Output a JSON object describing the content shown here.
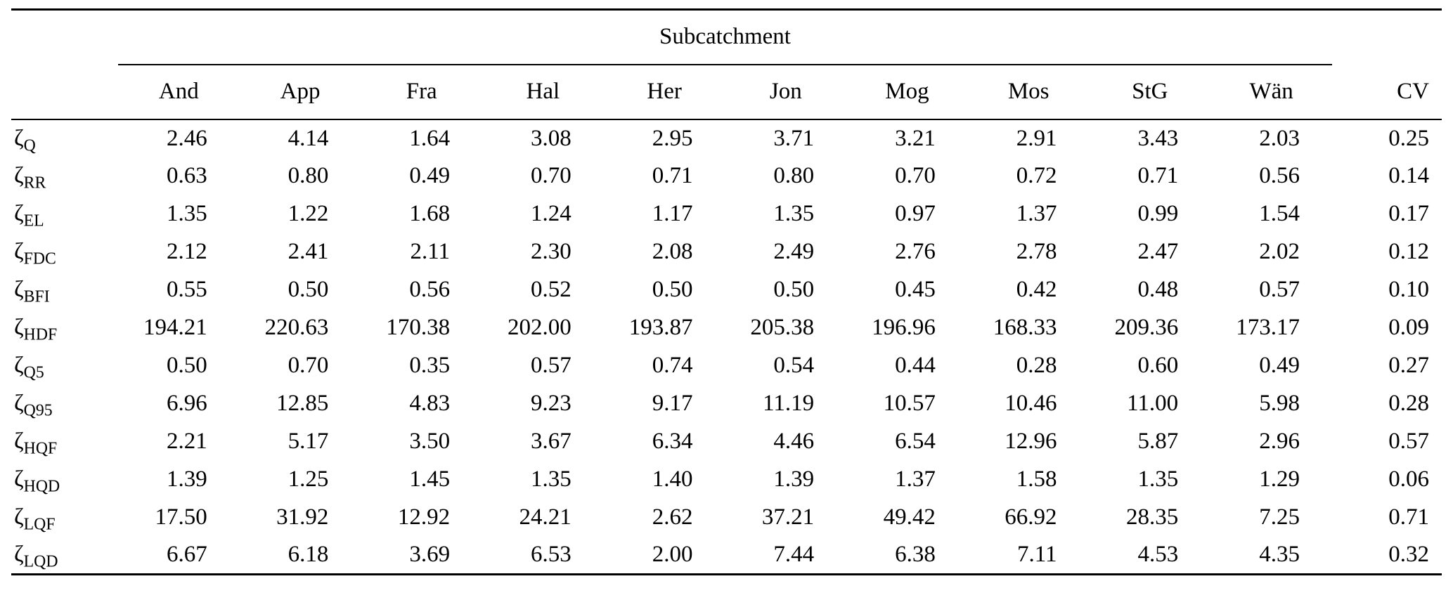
{
  "table": {
    "group_header": "Subcatchment",
    "row_symbol": "ζ",
    "columns": [
      "And",
      "App",
      "Fra",
      "Hal",
      "Her",
      "Jon",
      "Mog",
      "Mos",
      "StG",
      "Wän",
      "CV"
    ],
    "rows": [
      {
        "sub": "Q",
        "values": [
          "2.46",
          "4.14",
          "1.64",
          "3.08",
          "2.95",
          "3.71",
          "3.21",
          "2.91",
          "3.43",
          "2.03",
          "0.25"
        ]
      },
      {
        "sub": "RR",
        "values": [
          "0.63",
          "0.80",
          "0.49",
          "0.70",
          "0.71",
          "0.80",
          "0.70",
          "0.72",
          "0.71",
          "0.56",
          "0.14"
        ]
      },
      {
        "sub": "EL",
        "values": [
          "1.35",
          "1.22",
          "1.68",
          "1.24",
          "1.17",
          "1.35",
          "0.97",
          "1.37",
          "0.99",
          "1.54",
          "0.17"
        ]
      },
      {
        "sub": "FDC",
        "values": [
          "2.12",
          "2.41",
          "2.11",
          "2.30",
          "2.08",
          "2.49",
          "2.76",
          "2.78",
          "2.47",
          "2.02",
          "0.12"
        ]
      },
      {
        "sub": "BFI",
        "values": [
          "0.55",
          "0.50",
          "0.56",
          "0.52",
          "0.50",
          "0.50",
          "0.45",
          "0.42",
          "0.48",
          "0.57",
          "0.10"
        ]
      },
      {
        "sub": "HDF",
        "values": [
          "194.21",
          "220.63",
          "170.38",
          "202.00",
          "193.87",
          "205.38",
          "196.96",
          "168.33",
          "209.36",
          "173.17",
          "0.09"
        ]
      },
      {
        "sub": "Q5",
        "values": [
          "0.50",
          "0.70",
          "0.35",
          "0.57",
          "0.74",
          "0.54",
          "0.44",
          "0.28",
          "0.60",
          "0.49",
          "0.27"
        ]
      },
      {
        "sub": "Q95",
        "values": [
          "6.96",
          "12.85",
          "4.83",
          "9.23",
          "9.17",
          "11.19",
          "10.57",
          "10.46",
          "11.00",
          "5.98",
          "0.28"
        ]
      },
      {
        "sub": "HQF",
        "values": [
          "2.21",
          "5.17",
          "3.50",
          "3.67",
          "6.34",
          "4.46",
          "6.54",
          "12.96",
          "5.87",
          "2.96",
          "0.57"
        ]
      },
      {
        "sub": "HQD",
        "values": [
          "1.39",
          "1.25",
          "1.45",
          "1.35",
          "1.40",
          "1.39",
          "1.37",
          "1.58",
          "1.35",
          "1.29",
          "0.06"
        ]
      },
      {
        "sub": "LQF",
        "values": [
          "17.50",
          "31.92",
          "12.92",
          "24.21",
          "2.62",
          "37.21",
          "49.42",
          "66.92",
          "28.35",
          "7.25",
          "0.71"
        ]
      },
      {
        "sub": "LQD",
        "values": [
          "6.67",
          "6.18",
          "3.69",
          "6.53",
          "2.00",
          "7.44",
          "6.38",
          "7.11",
          "4.53",
          "4.35",
          "0.32"
        ]
      }
    ]
  }
}
